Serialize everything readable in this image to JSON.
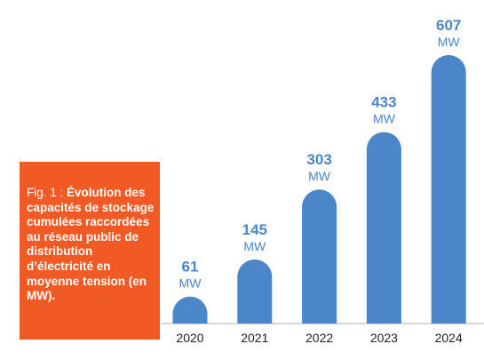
{
  "caption": {
    "lead": "Fig. 1 : ",
    "body": "Évolution des capacités de stockage cumulées raccordées au réseau public de distribution d’électricité en moyenne tension (en MW)."
  },
  "colors": {
    "bar": "#4a86c8",
    "caption_bg": "#f15a24",
    "axis": "#b0b0b0",
    "value_text": "#4a86c8",
    "tick_text": "#222222"
  },
  "chart_data": {
    "type": "bar",
    "categories": [
      "2020",
      "2021",
      "2022",
      "2023",
      "2024"
    ],
    "values": [
      61,
      145,
      303,
      433,
      607
    ],
    "value_labels": [
      "61",
      "145",
      "303",
      "433",
      "607"
    ],
    "unit_label": "MW",
    "title": "",
    "xlabel": "",
    "ylabel": "",
    "ylim": [
      0,
      607
    ],
    "grid": false,
    "legend": "none"
  }
}
